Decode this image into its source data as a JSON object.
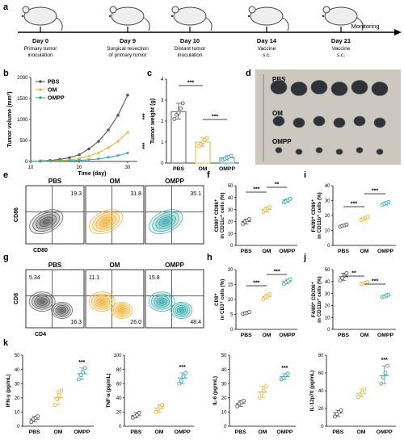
{
  "colors": {
    "pbs": "#595959",
    "om": "#f2b23a",
    "ompp": "#3aa9ab",
    "axis": "#000000",
    "timeline": "#000000",
    "photo_bg": "#c9c4bc"
  },
  "panel_labels": {
    "a": "a",
    "b": "b",
    "c": "c",
    "d": "d",
    "e": "e",
    "f": "f",
    "g": "g",
    "h": "h",
    "i": "i",
    "j": "j",
    "k": "k"
  },
  "timeline": {
    "events": [
      {
        "day": "Day 0",
        "desc1": "Primary tumor",
        "desc2": "inoculation"
      },
      {
        "day": "Day 9",
        "desc1": "Surgical resection",
        "desc2": "of primary tumor"
      },
      {
        "day": "Day 10",
        "desc1": "Distant tumor",
        "desc2": "inoculation"
      },
      {
        "day": "Day 14",
        "desc1": "Vaccine",
        "desc2": "s.c."
      },
      {
        "day": "Day 21",
        "desc1": "Vaccine",
        "desc2": "s.c."
      }
    ],
    "end_label": "Monitoring"
  },
  "photo": {
    "labels": [
      "PBS",
      "OM",
      "OMPP"
    ]
  },
  "flow_e": {
    "groups": [
      "PBS",
      "OM",
      "OMPP"
    ],
    "values": [
      "19.3",
      "31.8",
      "35.1"
    ],
    "ylabel": "CD86",
    "xlabel": "CD80"
  },
  "flow_g": {
    "groups": [
      "PBS",
      "OM",
      "OMPP"
    ],
    "upper_left": [
      "5.34",
      "11.1",
      "15.8"
    ],
    "lower_right": [
      "16.3",
      "26.0",
      "48.4"
    ],
    "ylabel": "CD8",
    "xlabel": "CD4"
  },
  "chart_data": [
    {
      "panel": "b",
      "type": "line",
      "xlabel": "Time (day)",
      "ylabel": "Tumor volume (mm³)",
      "xlim": [
        10,
        32
      ],
      "ylim": [
        0,
        2000
      ],
      "xticks": [
        10,
        20,
        30
      ],
      "yticks": [
        0,
        500,
        1000,
        1500,
        2000
      ],
      "x": [
        10,
        12,
        14,
        16,
        18,
        20,
        22,
        24,
        26,
        28,
        30
      ],
      "series": [
        {
          "name": "PBS",
          "values": [
            0,
            10,
            25,
            50,
            90,
            160,
            300,
            480,
            750,
            1100,
            1580
          ]
        },
        {
          "name": "OM",
          "values": [
            0,
            5,
            12,
            22,
            40,
            70,
            130,
            210,
            330,
            480,
            700
          ]
        },
        {
          "name": "OMPP",
          "values": [
            0,
            3,
            6,
            10,
            16,
            25,
            40,
            60,
            95,
            140,
            200
          ]
        }
      ],
      "significance": [
        "***",
        "***"
      ]
    },
    {
      "panel": "c",
      "type": "bar",
      "ylabel": "Tumor weight (g)",
      "ylim": [
        0,
        4
      ],
      "yticks": [
        0,
        1,
        2,
        3,
        4
      ],
      "categories": [
        "PBS",
        "OM",
        "OMPP"
      ],
      "values": [
        2.45,
        1.0,
        0.25
      ],
      "points": [
        [
          2.1,
          2.3,
          2.4,
          2.6,
          2.85
        ],
        [
          0.8,
          0.9,
          1.0,
          1.1,
          1.2
        ],
        [
          0.15,
          0.2,
          0.25,
          0.3,
          0.35
        ]
      ],
      "significance": [
        "***",
        "***"
      ]
    },
    {
      "panel": "f",
      "type": "scatter",
      "ylabel": "CD80⁺ CD86⁺ in CD11c⁺ cells (%)",
      "ylim": [
        0,
        50
      ],
      "yticks": [
        0,
        10,
        20,
        30,
        40,
        50
      ],
      "categories": [
        "PBS",
        "OM",
        "OMPP"
      ],
      "values": [
        20,
        30,
        38
      ],
      "points": [
        [
          18,
          20,
          21,
          22
        ],
        [
          28,
          30,
          31,
          32
        ],
        [
          36,
          37,
          38,
          39
        ]
      ],
      "significance": [
        "***",
        "**"
      ]
    },
    {
      "panel": "i",
      "type": "scatter",
      "ylabel": "F4/80⁺ CD86⁺ in CD11b⁺ cells (%)",
      "ylim": [
        0,
        40
      ],
      "yticks": [
        0,
        10,
        20,
        30,
        40
      ],
      "categories": [
        "PBS",
        "OM",
        "OMPP"
      ],
      "values": [
        13,
        18,
        28
      ],
      "points": [
        [
          12.5,
          13,
          13.5,
          14
        ],
        [
          17,
          18,
          18.5,
          19
        ],
        [
          27,
          28,
          28.5,
          29
        ]
      ],
      "significance": [
        "***",
        "***"
      ]
    },
    {
      "panel": "h",
      "type": "scatter",
      "ylabel": "CD8⁺ in CD3⁺ cells (%)",
      "ylim": [
        0,
        20
      ],
      "yticks": [
        0,
        5,
        10,
        15,
        20
      ],
      "categories": [
        "PBS",
        "OM",
        "OMPP"
      ],
      "values": [
        5.5,
        11,
        16
      ],
      "points": [
        [
          5.2,
          5.4,
          5.6,
          5.8
        ],
        [
          10.2,
          10.8,
          11.3,
          11.8
        ],
        [
          15.2,
          15.8,
          16.3,
          16.8
        ]
      ],
      "significance": [
        "***",
        "***"
      ]
    },
    {
      "panel": "j",
      "type": "scatter",
      "ylabel": "F4/80⁺ CD206⁺ in CD11b⁺ cells (%)",
      "ylim": [
        0,
        50
      ],
      "yticks": [
        0,
        10,
        20,
        30,
        40,
        50
      ],
      "categories": [
        "PBS",
        "OM",
        "OMPP"
      ],
      "values": [
        44,
        39,
        28
      ],
      "points": [
        [
          41,
          43,
          45,
          47
        ],
        [
          38,
          38.5,
          39,
          39.5
        ],
        [
          27,
          27.5,
          28.5,
          29
        ]
      ],
      "significance": [
        "**",
        "***"
      ]
    },
    {
      "panel": "k1",
      "type": "scatter",
      "ylabel": "IFN-γ (pg/mL)",
      "ylim": [
        0,
        50
      ],
      "yticks": [
        0,
        10,
        20,
        30,
        40,
        50
      ],
      "categories": [
        "PBS",
        "OM",
        "OMPP"
      ],
      "values": [
        5,
        20,
        37
      ],
      "points": [
        [
          3,
          5,
          6,
          7
        ],
        [
          15,
          19,
          22,
          25
        ],
        [
          33,
          36,
          38,
          41
        ]
      ],
      "significance": [
        "***"
      ]
    },
    {
      "panel": "k2",
      "type": "scatter",
      "ylabel": "TNF-α (pg/mL)",
      "ylim": [
        0,
        100
      ],
      "yticks": [
        0,
        20,
        40,
        60,
        80,
        100
      ],
      "categories": [
        "PBS",
        "OM",
        "OMPP"
      ],
      "values": [
        15,
        25,
        68
      ],
      "points": [
        [
          12,
          14,
          16,
          19
        ],
        [
          20,
          24,
          27,
          30
        ],
        [
          60,
          64,
          70,
          75
        ]
      ],
      "significance": [
        "***"
      ]
    },
    {
      "panel": "k3",
      "type": "scatter",
      "ylabel": "IL-6 (pg/mL)",
      "ylim": [
        0,
        50
      ],
      "yticks": [
        0,
        10,
        20,
        30,
        40,
        50
      ],
      "categories": [
        "PBS",
        "OM",
        "OMPP"
      ],
      "values": [
        16,
        24,
        35
      ],
      "points": [
        [
          14,
          16,
          17,
          18
        ],
        [
          20,
          23,
          25,
          28
        ],
        [
          33,
          34,
          36,
          37
        ]
      ],
      "significance": [
        "***"
      ]
    },
    {
      "panel": "k4",
      "type": "scatter",
      "ylabel": "IL-12p70 (pg/mL)",
      "ylim": [
        0,
        80
      ],
      "yticks": [
        0,
        20,
        40,
        60,
        80
      ],
      "categories": [
        "PBS",
        "OM",
        "OMPP"
      ],
      "values": [
        15,
        37,
        57
      ],
      "points": [
        [
          11,
          14,
          16,
          18
        ],
        [
          33,
          36,
          38,
          42
        ],
        [
          48,
          55,
          60,
          68
        ]
      ],
      "significance": [
        "***"
      ]
    }
  ]
}
